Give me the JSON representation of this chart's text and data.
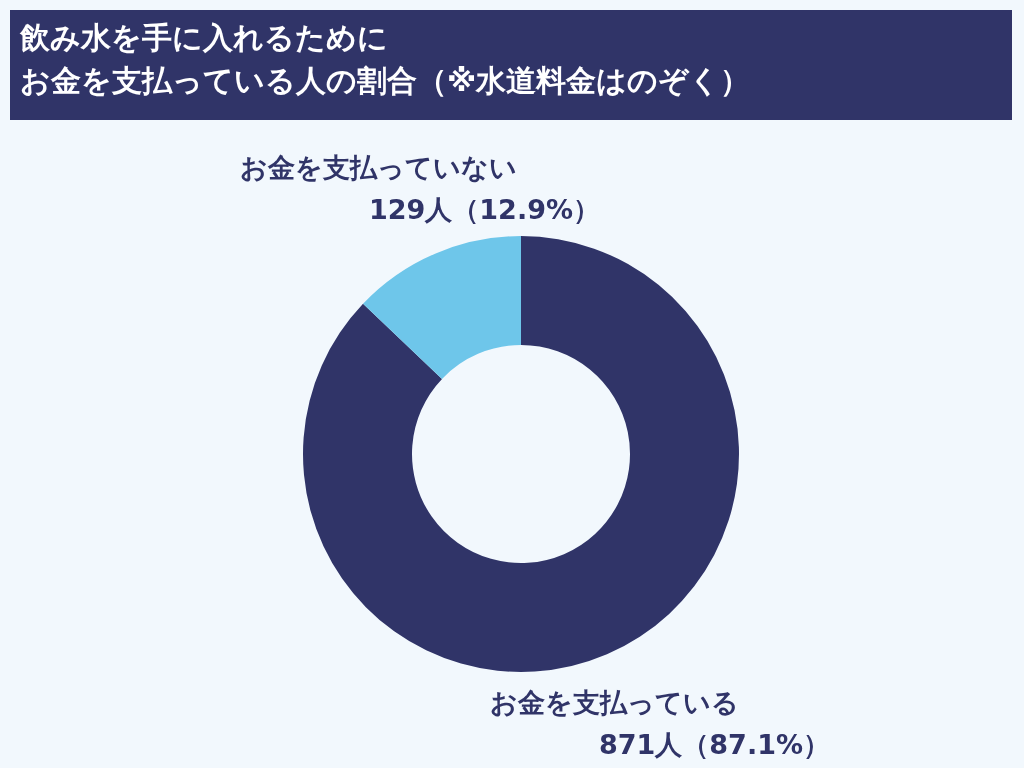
{
  "chart_data": {
    "type": "donut",
    "title": "飲み水を手に入れるために",
    "subtitle": "お金を支払っている人の割合（※水道料金はのぞく）",
    "categories": [
      "お金を支払っている",
      "お金を支払っていない"
    ],
    "values": [
      871,
      129
    ],
    "colors": [
      "#303468",
      "#6ec6ea"
    ],
    "value_labels": [
      "871人（87.1%）",
      "129人（12.9%）"
    ],
    "legend": false
  }
}
